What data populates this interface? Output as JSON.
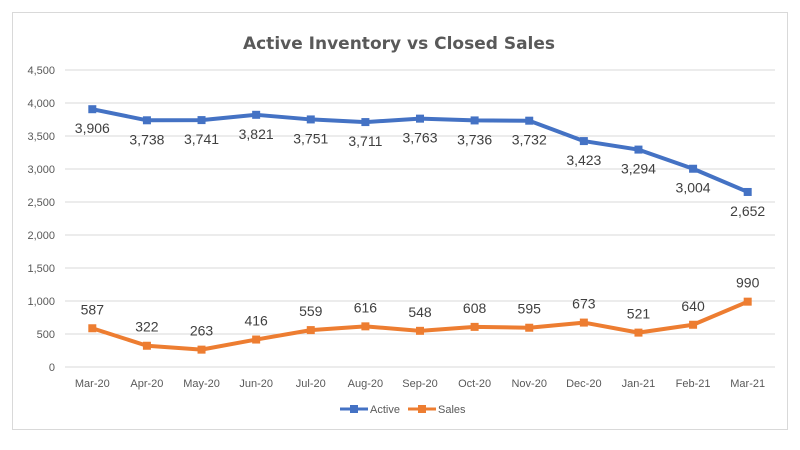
{
  "chart_data": {
    "type": "line",
    "title": "Active Inventory vs Closed Sales",
    "categories": [
      "Mar-20",
      "Apr-20",
      "May-20",
      "Jun-20",
      "Jul-20",
      "Aug-20",
      "Sep-20",
      "Oct-20",
      "Nov-20",
      "Dec-20",
      "Jan-21",
      "Feb-21",
      "Mar-21"
    ],
    "series": [
      {
        "name": "Active",
        "color": "#4472C4",
        "values": [
          3906,
          3738,
          3741,
          3821,
          3751,
          3711,
          3763,
          3736,
          3732,
          3423,
          3294,
          3004,
          2652
        ],
        "labels": [
          "3,906",
          "3,738",
          "3,741",
          "3,821",
          "3,751",
          "3,711",
          "3,763",
          "3,736",
          "3,732",
          "3,423",
          "3,294",
          "3,004",
          "2,652"
        ]
      },
      {
        "name": "Sales",
        "color": "#ED7D31",
        "values": [
          587,
          322,
          263,
          416,
          559,
          616,
          548,
          608,
          595,
          673,
          521,
          640,
          990
        ],
        "labels": [
          "587",
          "322",
          "263",
          "416",
          "559",
          "616",
          "548",
          "608",
          "595",
          "673",
          "521",
          "640",
          "990"
        ]
      }
    ],
    "ylim": [
      0,
      4500
    ],
    "yticks": [
      0,
      500,
      1000,
      1500,
      2000,
      2500,
      3000,
      3500,
      4000,
      4500
    ],
    "ytick_labels": [
      "0",
      "500",
      "1,000",
      "1,500",
      "2,000",
      "2,500",
      "3,000",
      "3,500",
      "4,000",
      "4,500"
    ],
    "xlabel": "",
    "ylabel": "",
    "grid": true,
    "legend": "bottom"
  }
}
